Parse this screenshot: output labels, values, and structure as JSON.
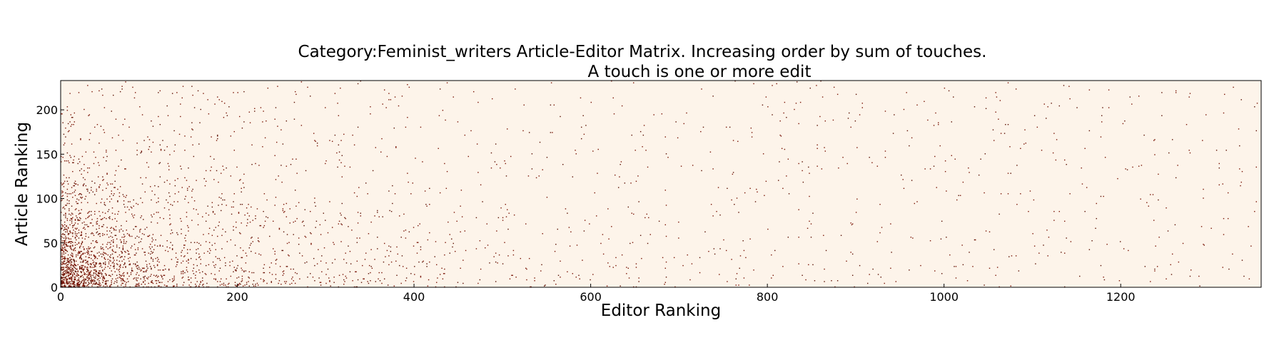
{
  "chart_data": {
    "type": "heatmap",
    "title_line1": "Category:Feminist_writers Article-Editor Matrix. Increasing order by sum of touches.",
    "title_line2": "A touch is one or more edit",
    "xlabel": "Editor Ranking",
    "ylabel": "Article Ranking",
    "xlim": [
      0,
      1359
    ],
    "ylim": [
      0,
      233
    ],
    "x_ticks": [
      0,
      200,
      400,
      600,
      800,
      1000,
      1200
    ],
    "y_ticks": [
      0,
      50,
      100,
      150,
      200
    ],
    "x_tick_labels": [
      "0",
      "200",
      "400",
      "600",
      "800",
      "1000",
      "1200"
    ],
    "y_tick_labels": [
      "0",
      "50",
      "100",
      "150",
      "200"
    ],
    "grid": false,
    "legend": "none",
    "colors": {
      "background": "#fdf4ea",
      "cell": "#7a1506",
      "cell_dark": "#5a0f02",
      "frame": "#000000"
    },
    "density_note": "Sparse binary matrix; touches concentrate near low editor and low article rankings"
  }
}
